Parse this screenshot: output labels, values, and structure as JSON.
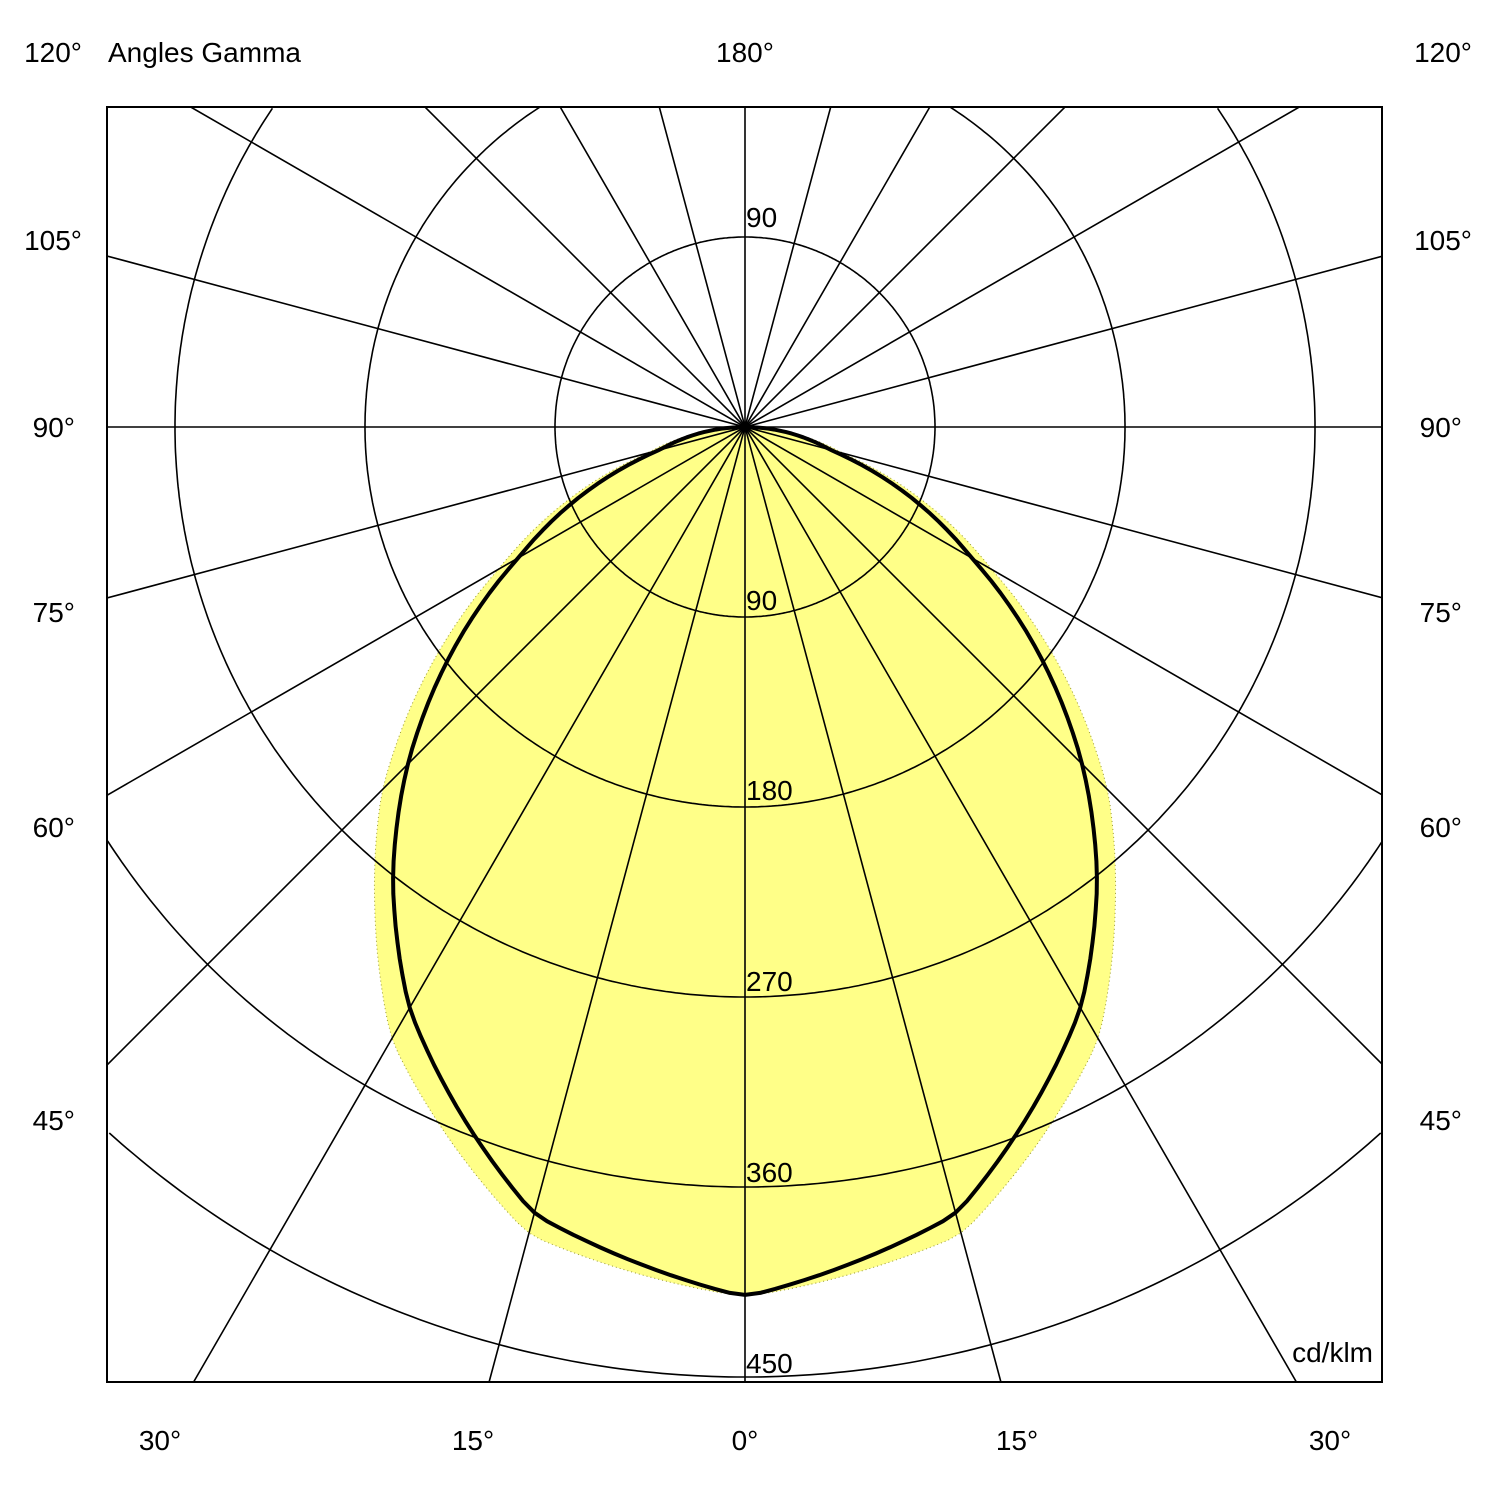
{
  "chart_data": {
    "type": "polar",
    "title": "Angles Gamma",
    "unit_label": "cd/klm",
    "radial_ticks": [
      90,
      180,
      270,
      360,
      450
    ],
    "radial_max": 450,
    "angular_grid_step_deg": 15,
    "grid": true,
    "angle_labels_left": [
      "120°",
      "105°",
      "90°",
      "75°",
      "60°",
      "45°"
    ],
    "angle_labels_right": [
      "120°",
      "105°",
      "90°",
      "75°",
      "60°",
      "45°"
    ],
    "angle_label_top": "180°",
    "angle_labels_bottom": [
      "30°",
      "15°",
      "0°",
      "15°",
      "30°"
    ],
    "series": [
      {
        "style": "filled",
        "color": "#ffff88",
        "gamma_deg": [
          0,
          15,
          30,
          38,
          45,
          60,
          75,
          90
        ],
        "intensity": [
          412,
          396,
          335,
          285,
          243,
          135,
          48,
          0
        ]
      },
      {
        "style": "line",
        "color": "#000000",
        "gamma_deg": [
          0,
          15,
          30,
          38,
          45,
          60,
          75,
          90
        ],
        "intensity": [
          412,
          386,
          318,
          271,
          226,
          124,
          42,
          0
        ]
      }
    ]
  }
}
